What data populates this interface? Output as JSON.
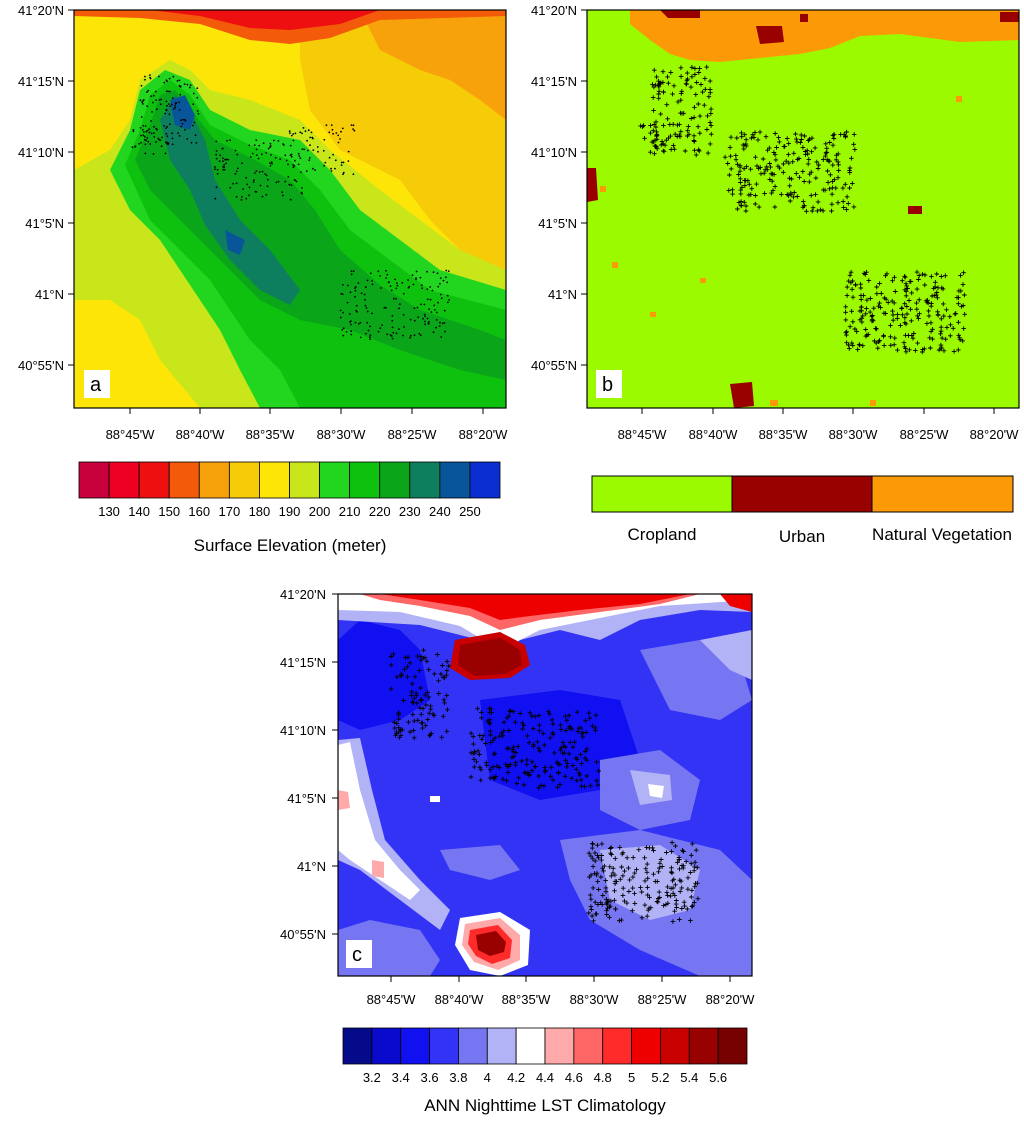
{
  "lat_ticks": [
    "41°20'N",
    "41°15'N",
    "41°10'N",
    "41°5'N",
    "41°N",
    "40°55'N"
  ],
  "lon_ticks": [
    "88°45'W",
    "88°40'W",
    "88°35'W",
    "88°30'W",
    "88°25'W",
    "88°20'W"
  ],
  "panel_a": {
    "letter": "a",
    "colorbar": {
      "title": "Surface Elevation (meter)",
      "labels": [
        "130",
        "140",
        "150",
        "160",
        "170",
        "180",
        "190",
        "200",
        "210",
        "220",
        "230",
        "240",
        "250"
      ],
      "colors": [
        "#c8003c",
        "#ee0022",
        "#ee1010",
        "#f35a0a",
        "#f7a20a",
        "#f6cc08",
        "#fde508",
        "#c8e619",
        "#22d61f",
        "#0ec10e",
        "#0aa519",
        "#0e7f5e",
        "#095599",
        "#0a2ed0"
      ]
    }
  },
  "panel_b": {
    "letter": "b",
    "legend": [
      {
        "label": "Cropland",
        "color": "#9cfa00"
      },
      {
        "label": "Urban",
        "color": "#990000"
      },
      {
        "label": "Natural Vegetation",
        "color": "#fb9a06"
      }
    ]
  },
  "panel_c": {
    "letter": "c",
    "colorbar": {
      "title": "ANN Nighttime LST Climatology",
      "labels": [
        "3.2",
        "3.4",
        "3.6",
        "3.8",
        "4",
        "4.2",
        "4.4",
        "4.6",
        "4.8",
        "5",
        "5.2",
        "5.4",
        "5.6"
      ],
      "colors": [
        "#050a8a",
        "#0a0acc",
        "#1010f0",
        "#3333f5",
        "#7676f2",
        "#b2b2f7",
        "#ffffff",
        "#ffaaaa",
        "#ff6666",
        "#ff2a2a",
        "#ee0000",
        "#c80000",
        "#990000",
        "#770000"
      ]
    }
  }
}
